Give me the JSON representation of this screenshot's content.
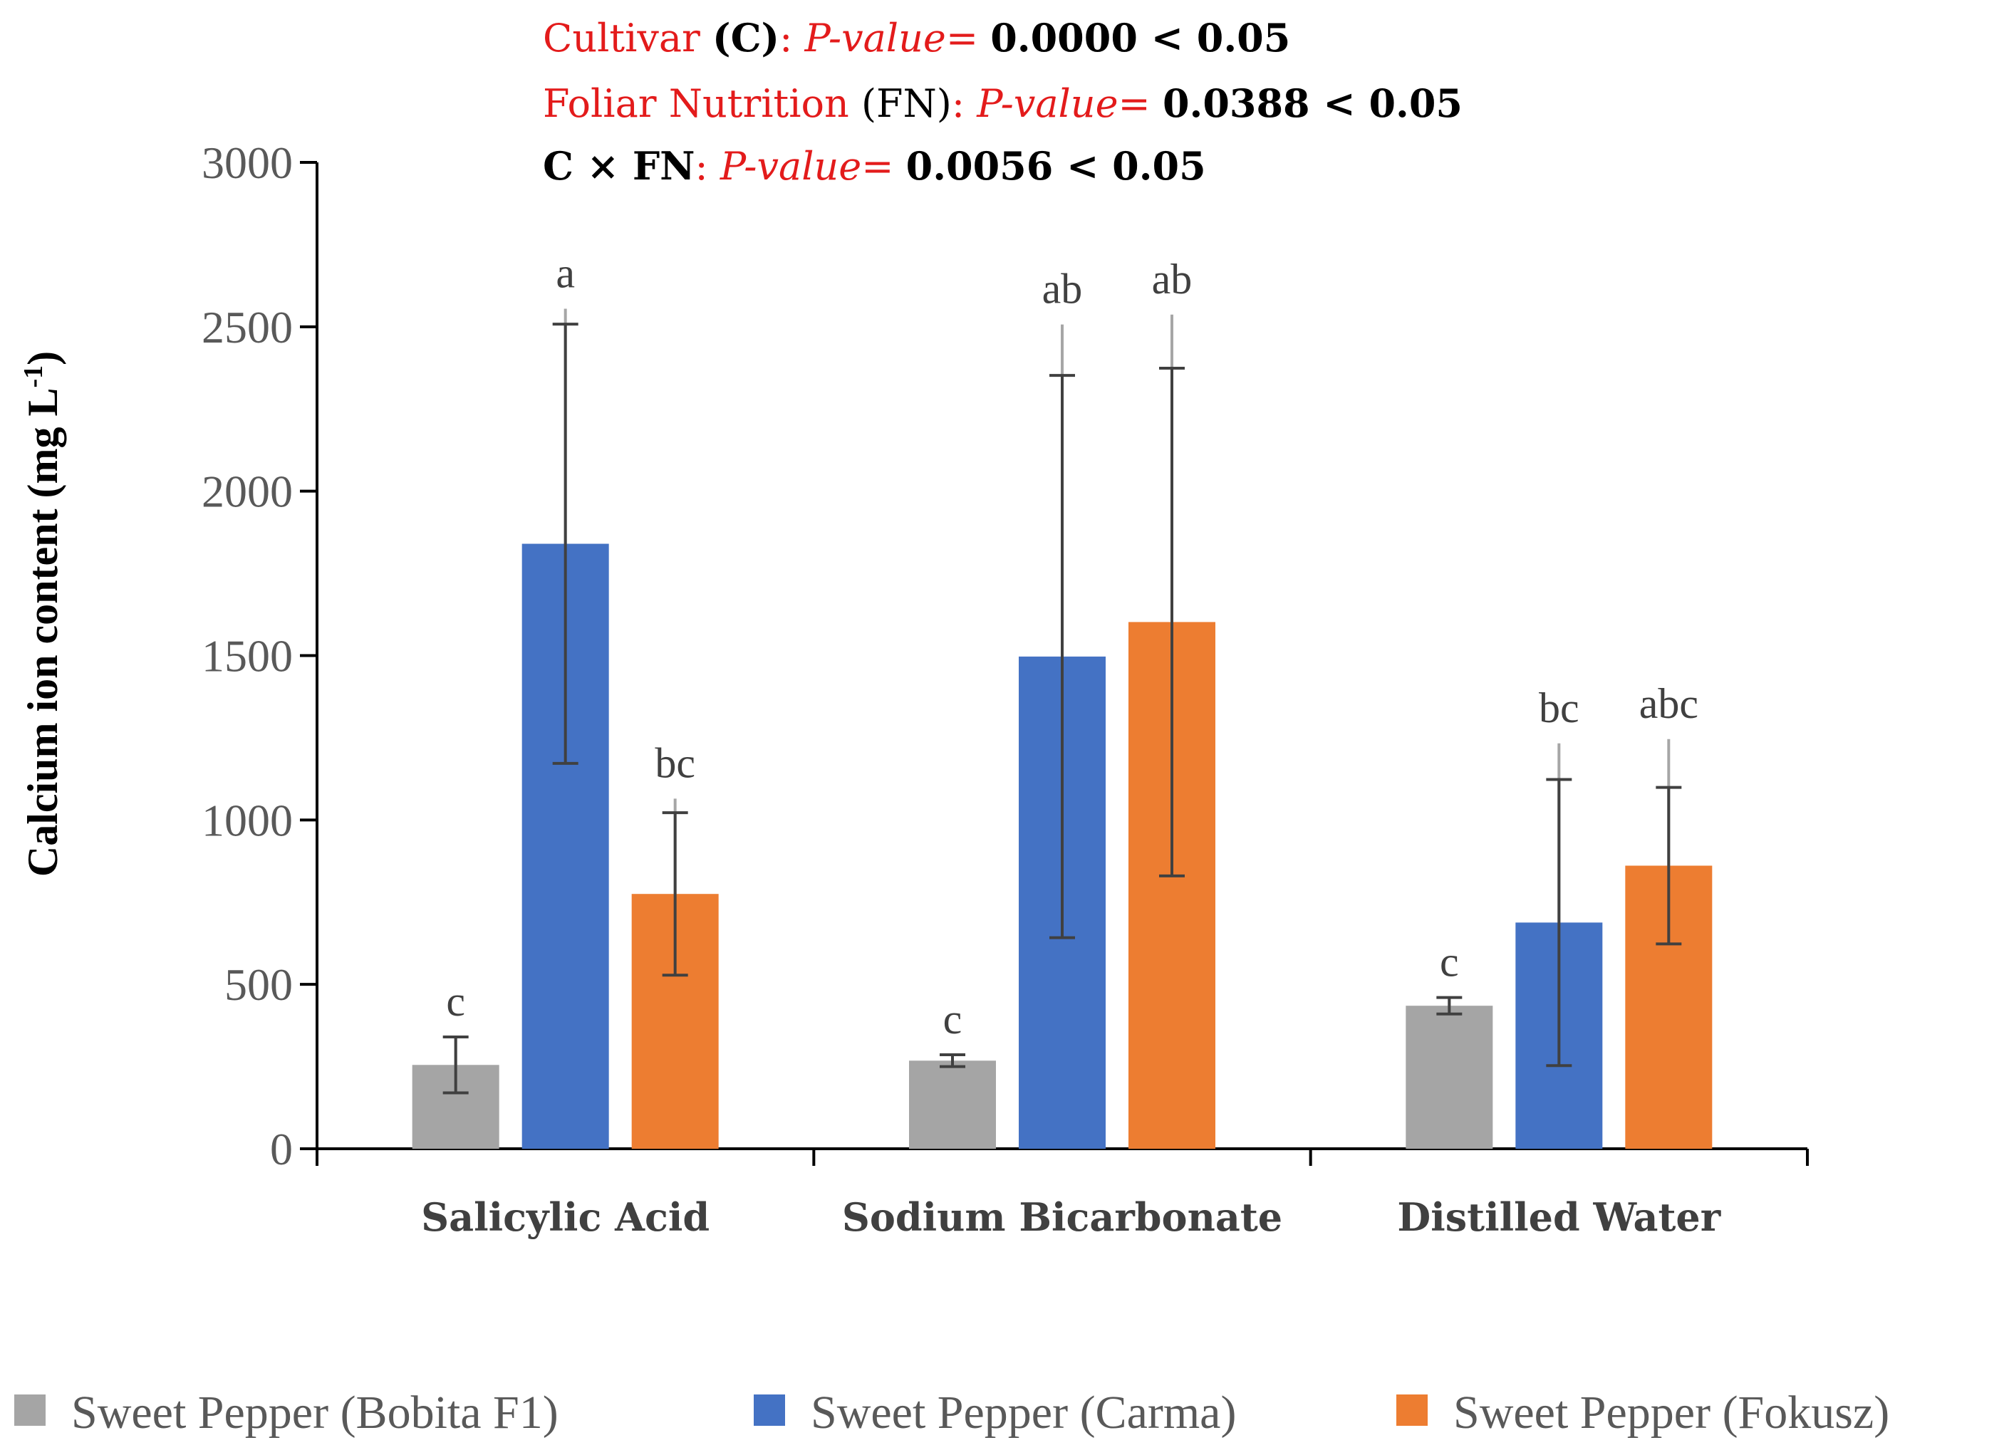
{
  "colors": {
    "red": "#e31b1b",
    "black": "#000000",
    "axis": "#000000",
    "tick_text": "#595959",
    "err_dark": "#404040",
    "err_light": "#a6a6a6"
  },
  "annotations": [
    {
      "parts": [
        {
          "text": "Cultivar ",
          "style": "red"
        },
        {
          "text": "(C)",
          "style": "black-bold"
        },
        {
          "text": ": ",
          "style": "red"
        },
        {
          "text": "P-value",
          "style": "red-italic"
        },
        {
          "text": "= ",
          "style": "red"
        },
        {
          "text": "0.0000 < 0.05",
          "style": "black-bold"
        }
      ]
    },
    {
      "parts": [
        {
          "text": "Foliar Nutrition ",
          "style": "red"
        },
        {
          "text": "(FN)",
          "style": "black"
        },
        {
          "text": ": ",
          "style": "red"
        },
        {
          "text": "P-value",
          "style": "red-italic"
        },
        {
          "text": "= ",
          "style": "red"
        },
        {
          "text": "0.0388 < 0.05",
          "style": "black-bold"
        }
      ]
    },
    {
      "parts": [
        {
          "text": "C × FN",
          "style": "black-bold"
        },
        {
          "text": ": ",
          "style": "red"
        },
        {
          "text": "P-value",
          "style": "red-italic"
        },
        {
          "text": "= ",
          "style": "red"
        },
        {
          "text": "0.0056 < 0.05",
          "style": "black-bold"
        }
      ]
    }
  ],
  "chart_data": {
    "type": "bar",
    "ylabel": "Calcium ion content (mg L",
    "ylabel_sup": "-1",
    "ylabel_close": ")",
    "ylim": [
      0,
      3000
    ],
    "yticks": [
      0,
      500,
      1000,
      1500,
      2000,
      2500,
      3000
    ],
    "grid": false,
    "legend_position": "bottom",
    "categories": [
      "Salicylic Acid",
      "Sodium Bicarbonate",
      "Distilled Water"
    ],
    "series": [
      {
        "name": "Sweet Pepper (Bobita F1)",
        "color": "#a5a5a5",
        "values": [
          255,
          268,
          435
        ],
        "err_dark": [
          85,
          18,
          25
        ],
        "err_light": [
          85,
          18,
          25
        ],
        "letters": [
          "c",
          "c",
          "c"
        ]
      },
      {
        "name": "Sweet Pepper (Carma)",
        "color": "#4472c4",
        "values": [
          1840,
          1497,
          688
        ],
        "err_dark": [
          668,
          855,
          435
        ],
        "err_light": [
          715,
          1010,
          545
        ],
        "letters": [
          "a",
          "ab",
          "bc"
        ]
      },
      {
        "name": "Sweet Pepper (Fokusz)",
        "color": "#ed7d31",
        "values": [
          775,
          1602,
          861
        ],
        "err_dark": [
          247,
          772,
          238
        ],
        "err_light": [
          290,
          935,
          385
        ],
        "letters": [
          "bc",
          "ab",
          "abc"
        ]
      }
    ]
  }
}
